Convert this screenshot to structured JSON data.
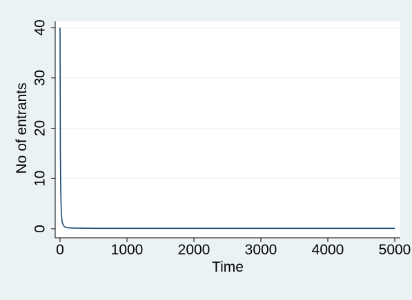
{
  "colors": {
    "outer_background": "#eaf2f3",
    "plot_background": "#ffffff",
    "gridline": "#eaf2f3",
    "axis": "#000000",
    "series_line": "#1a476f"
  },
  "chart_data": {
    "type": "line",
    "title": "",
    "xlabel": "Time",
    "ylabel": "No of entrants",
    "xlim": [
      0,
      5000
    ],
    "ylim": [
      0,
      40
    ],
    "x_ticks": [
      0,
      1000,
      2000,
      3000,
      4000,
      5000
    ],
    "y_ticks": [
      0,
      10,
      20,
      30,
      40
    ],
    "grid": true,
    "legend": "none",
    "series": [
      {
        "x": [
          0,
          5,
          10,
          15,
          20,
          30,
          40,
          60,
          80,
          120,
          200,
          500,
          1000,
          2000,
          3000,
          4000,
          5000
        ],
        "y": [
          40,
          15,
          8,
          5,
          3,
          1.5,
          1,
          0.5,
          0.3,
          0.2,
          0.15,
          0.1,
          0.1,
          0.1,
          0.1,
          0.1,
          0.1
        ]
      }
    ]
  }
}
